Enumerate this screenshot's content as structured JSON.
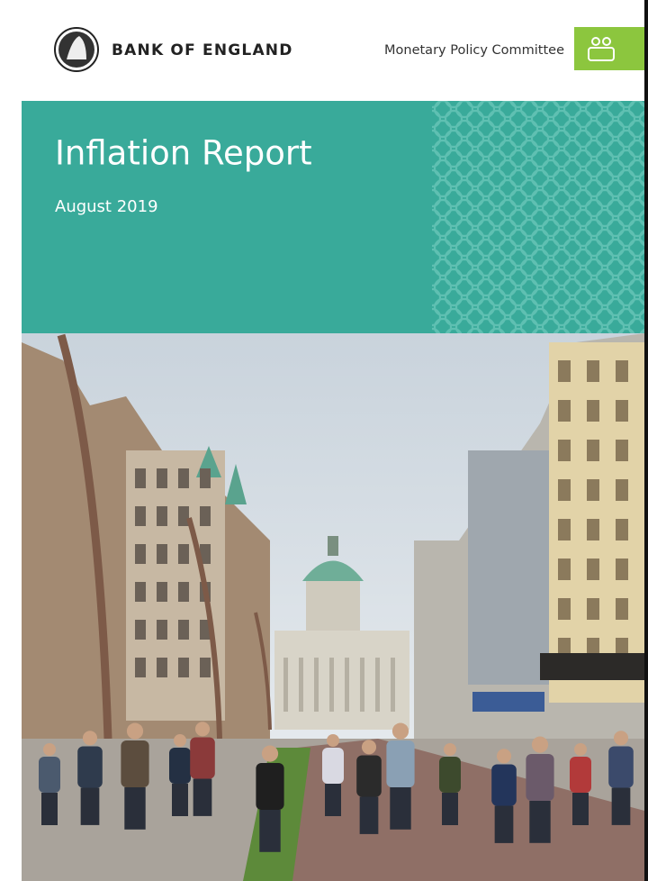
{
  "header": {
    "brand": "BANK OF ENGLAND",
    "committee": "Monetary Policy Committee"
  },
  "cover": {
    "title": "Inflation Report",
    "subtitle": "August 2019"
  }
}
